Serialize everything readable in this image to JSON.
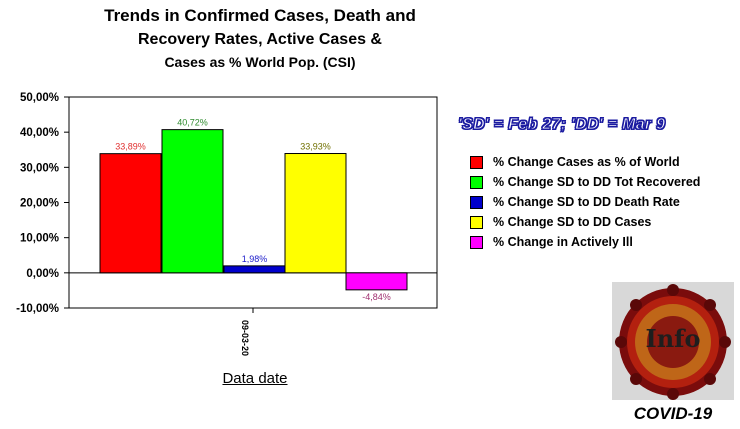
{
  "title": {
    "line1": "Trends in Confirmed Cases, Death and",
    "line2": "Recovery Rates, Active Cases &",
    "line3": "Cases as % World Pop. (CSI)"
  },
  "note": "'SD' = Feb 27; 'DD' = Mar 9",
  "badge": {
    "text": "Info",
    "caption": "COVID-19"
  },
  "chart_data": {
    "type": "bar",
    "xlabel": "Data date",
    "categories": [
      "09-03-20"
    ],
    "ylim": [
      -10,
      50
    ],
    "yticks": [
      "50,00%",
      "40,00%",
      "30,00%",
      "20,00%",
      "10,00%",
      "0,00%",
      "-10,00%"
    ],
    "ytick_values": [
      50,
      40,
      30,
      20,
      10,
      0,
      -10
    ],
    "grid": false,
    "legend_position": "right",
    "series": [
      {
        "name": "% Change Cases as % of World",
        "value": 33.89,
        "label": "33,89%",
        "color": "#ff0000",
        "label_color": "#e03030"
      },
      {
        "name": "% Change SD to DD Tot Recovered",
        "value": 40.72,
        "label": "40,72%",
        "color": "#00ff00",
        "label_color": "#2e8b2e"
      },
      {
        "name": "% Change SD to DD Death Rate",
        "value": 1.98,
        "label": "1,98%",
        "color": "#0000cc",
        "label_color": "#2020cc"
      },
      {
        "name": "% Change SD to DD Cases",
        "value": 33.93,
        "label": "33,93%",
        "color": "#ffff00",
        "label_color": "#707000"
      },
      {
        "name": "% Change in Actively Ill",
        "value": -4.84,
        "label": "-4,84%",
        "color": "#ff00ff",
        "label_color": "#a03070"
      }
    ]
  }
}
